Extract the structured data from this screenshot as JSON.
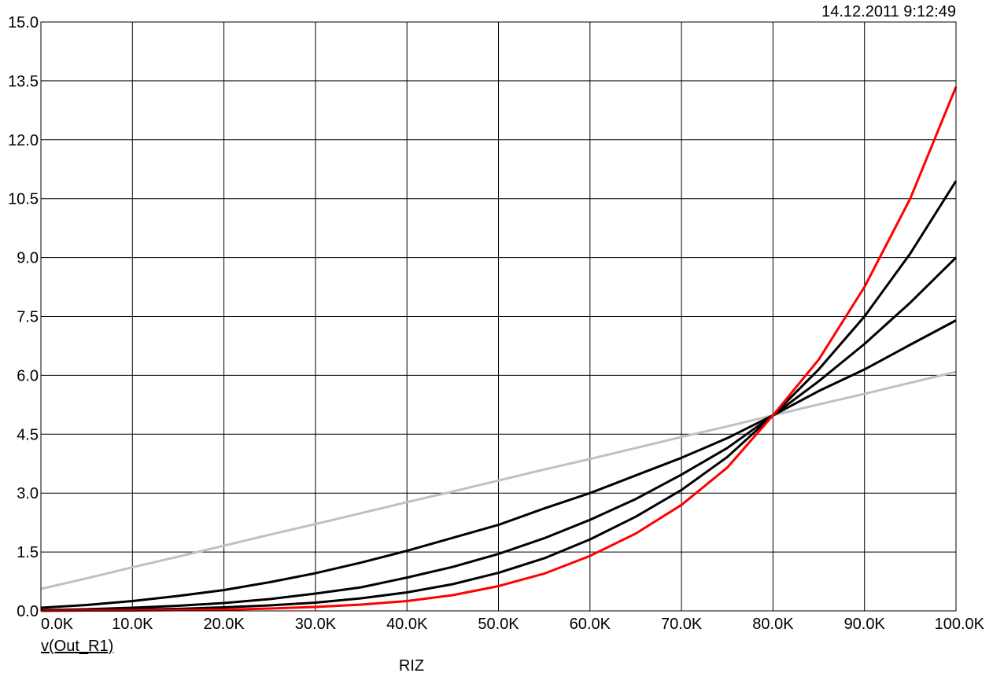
{
  "timestamp": "14.12.2011 9:12:49",
  "chart_data": {
    "type": "line",
    "title": "",
    "xlabel": "RIZ",
    "ylabel": "",
    "trace_label": "v(Out_R1)",
    "xlim": [
      0,
      100000
    ],
    "ylim": [
      0,
      15
    ],
    "grid": true,
    "x_ticks": [
      {
        "value": 0,
        "label": "0.0K"
      },
      {
        "value": 10000,
        "label": "10.0K"
      },
      {
        "value": 20000,
        "label": "20.0K"
      },
      {
        "value": 30000,
        "label": "30.0K"
      },
      {
        "value": 40000,
        "label": "40.0K"
      },
      {
        "value": 50000,
        "label": "50.0K"
      },
      {
        "value": 60000,
        "label": "60.0K"
      },
      {
        "value": 70000,
        "label": "70.0K"
      },
      {
        "value": 80000,
        "label": "80.0K"
      },
      {
        "value": 90000,
        "label": "90.0K"
      },
      {
        "value": 100000,
        "label": "100.0K"
      }
    ],
    "y_ticks": [
      {
        "value": 0,
        "label": "0.0"
      },
      {
        "value": 1.5,
        "label": "1.5"
      },
      {
        "value": 3,
        "label": "3.0"
      },
      {
        "value": 4.5,
        "label": "4.5"
      },
      {
        "value": 6,
        "label": "6.0"
      },
      {
        "value": 7.5,
        "label": "7.5"
      },
      {
        "value": 9,
        "label": "9.0"
      },
      {
        "value": 10.5,
        "label": "10.5"
      },
      {
        "value": 12,
        "label": "12.0"
      },
      {
        "value": 13.5,
        "label": "13.5"
      },
      {
        "value": 15,
        "label": "15.0"
      }
    ],
    "x": [
      0,
      5000,
      10000,
      15000,
      20000,
      25000,
      30000,
      35000,
      40000,
      45000,
      50000,
      55000,
      60000,
      65000,
      70000,
      75000,
      80000,
      85000,
      90000,
      95000,
      100000
    ],
    "series": [
      {
        "color": "#c0c0c0",
        "values": [
          0.56,
          0.83,
          1.11,
          1.38,
          1.66,
          1.94,
          2.21,
          2.49,
          2.77,
          3.04,
          3.32,
          3.6,
          3.87,
          4.15,
          4.43,
          4.7,
          4.98,
          5.26,
          5.53,
          5.81,
          6.09
        ]
      },
      {
        "color": "#000000",
        "values": [
          0.08,
          0.15,
          0.25,
          0.38,
          0.53,
          0.73,
          0.96,
          1.23,
          1.53,
          1.86,
          2.19,
          2.61,
          3.0,
          3.45,
          3.9,
          4.4,
          4.98,
          5.6,
          6.15,
          6.78,
          7.4
        ]
      },
      {
        "color": "#000000",
        "values": [
          0.02,
          0.04,
          0.08,
          0.13,
          0.2,
          0.3,
          0.44,
          0.6,
          0.85,
          1.12,
          1.45,
          1.85,
          2.32,
          2.85,
          3.47,
          4.15,
          4.98,
          5.85,
          6.8,
          7.85,
          9.0
        ]
      },
      {
        "color": "#000000",
        "values": [
          0.01,
          0.02,
          0.03,
          0.05,
          0.09,
          0.14,
          0.21,
          0.32,
          0.47,
          0.68,
          0.97,
          1.34,
          1.82,
          2.4,
          3.08,
          3.92,
          4.98,
          6.15,
          7.5,
          9.1,
          10.95
        ]
      },
      {
        "color": "#ff0000",
        "values": [
          0.0,
          0.01,
          0.01,
          0.02,
          0.03,
          0.06,
          0.1,
          0.16,
          0.25,
          0.4,
          0.63,
          0.95,
          1.4,
          1.97,
          2.7,
          3.65,
          4.98,
          6.4,
          8.25,
          10.5,
          13.35
        ]
      }
    ]
  }
}
